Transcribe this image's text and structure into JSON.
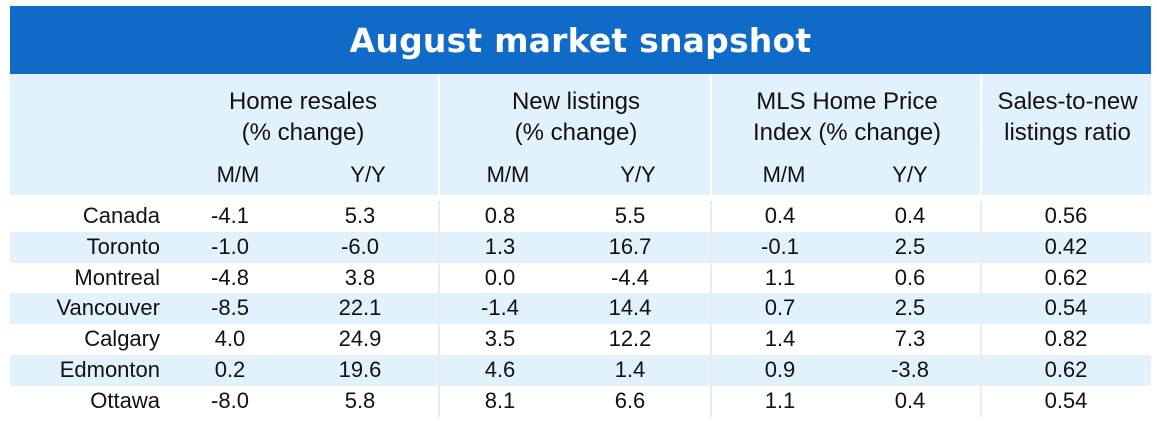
{
  "chart_data": {
    "type": "table",
    "title": "August market snapshot",
    "column_groups": [
      {
        "label_lines": [
          "Home resales",
          "(% change)"
        ],
        "subcolumns": [
          "M/M",
          "Y/Y"
        ]
      },
      {
        "label_lines": [
          "New listings",
          "(% change)"
        ],
        "subcolumns": [
          "M/M",
          "Y/Y"
        ]
      },
      {
        "label_lines": [
          "MLS Home Price",
          "Index (% change)"
        ],
        "subcolumns": [
          "M/M",
          "Y/Y"
        ]
      },
      {
        "label_lines": [
          "Sales-to-new",
          "listings ratio"
        ],
        "subcolumns": []
      }
    ],
    "rows": [
      {
        "city": "Canada",
        "values": [
          "-4.1",
          "5.3",
          "0.8",
          "5.5",
          "0.4",
          "0.4",
          "0.56"
        ]
      },
      {
        "city": "Toronto",
        "values": [
          "-1.0",
          "-6.0",
          "1.3",
          "16.7",
          "-0.1",
          "2.5",
          "0.42"
        ]
      },
      {
        "city": "Montreal",
        "values": [
          "-4.8",
          "3.8",
          "0.0",
          "-4.4",
          "1.1",
          "0.6",
          "0.62"
        ]
      },
      {
        "city": "Vancouver",
        "values": [
          "-8.5",
          "22.1",
          "-1.4",
          "14.4",
          "0.7",
          "2.5",
          "0.54"
        ]
      },
      {
        "city": "Calgary",
        "values": [
          "4.0",
          "24.9",
          "3.5",
          "12.2",
          "1.4",
          "7.3",
          "0.82"
        ]
      },
      {
        "city": "Edmonton",
        "values": [
          "0.2",
          "19.6",
          "4.6",
          "1.4",
          "0.9",
          "-3.8",
          "0.62"
        ]
      },
      {
        "city": "Ottawa",
        "values": [
          "-8.0",
          "5.8",
          "8.1",
          "6.6",
          "1.1",
          "0.4",
          "0.54"
        ]
      }
    ]
  },
  "colors": {
    "title_bar": "#0f6ac8",
    "header_fill": "#e2f2fc",
    "row_stripe": "#e2f2fc",
    "text": "#111111",
    "title_text": "#ffffff"
  }
}
